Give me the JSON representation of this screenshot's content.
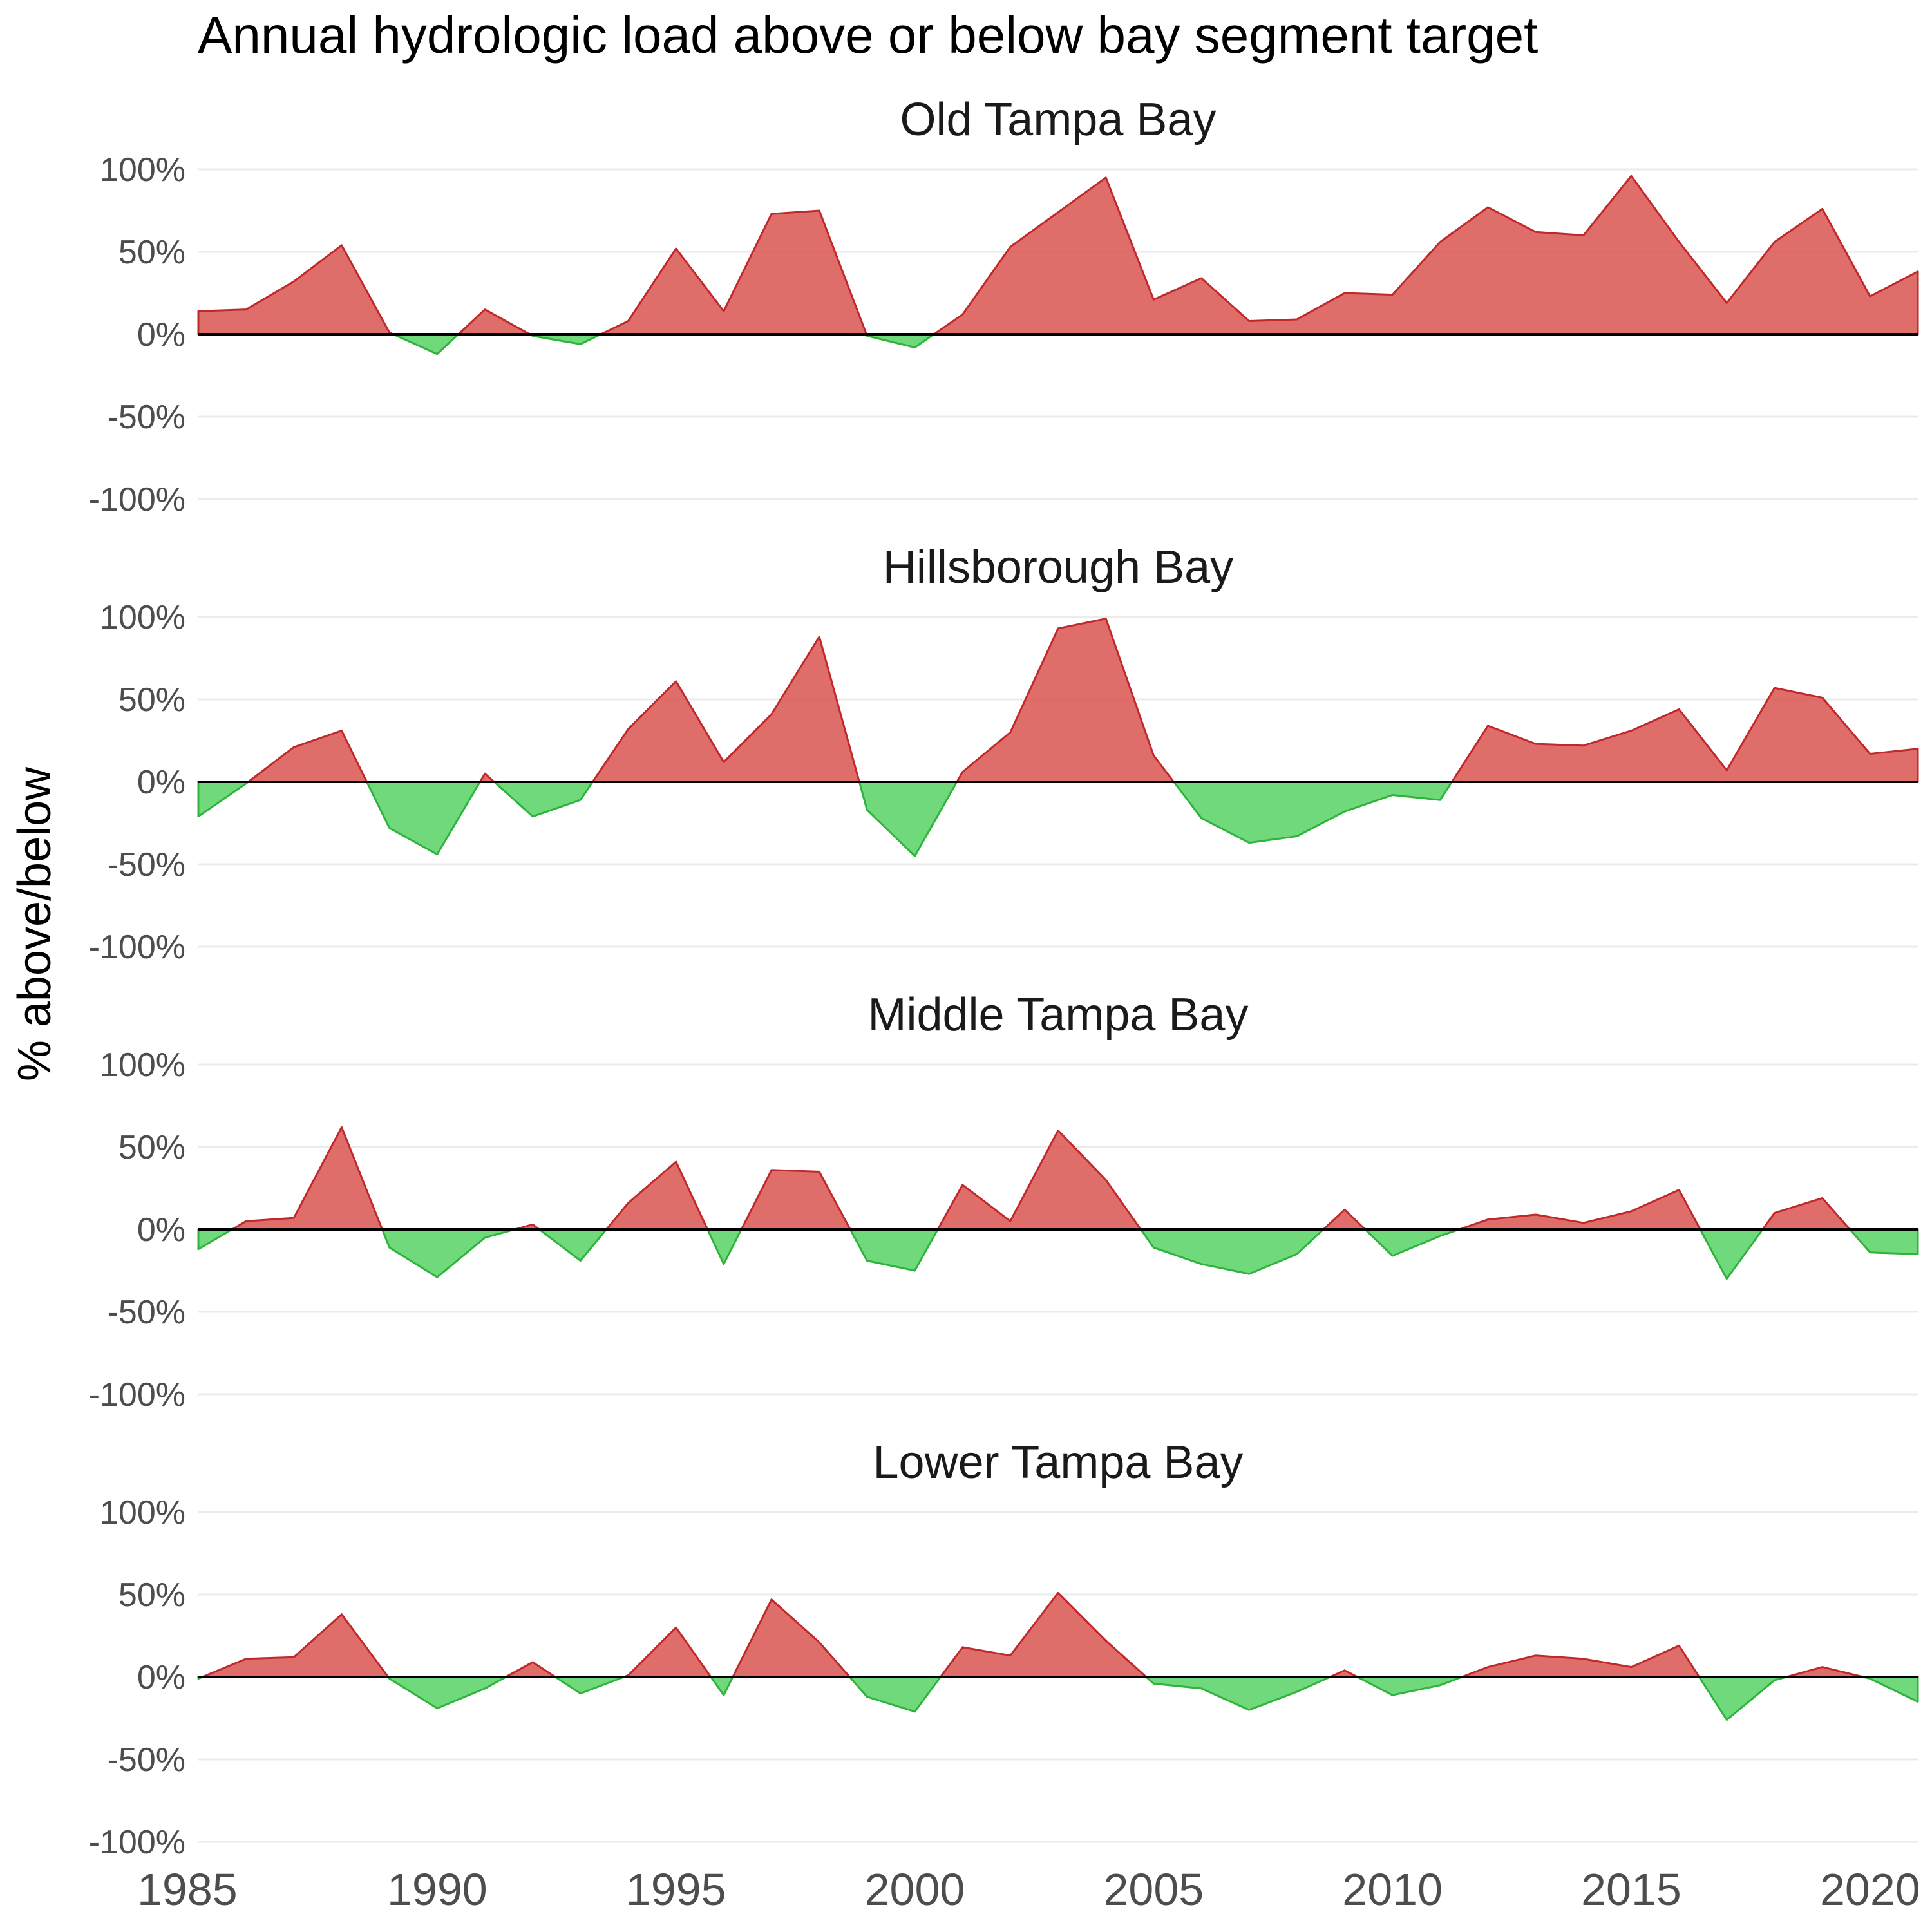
{
  "title": "Annual hydrologic load above or below bay segment target",
  "ylabel": "% above/below",
  "colors": {
    "above": "#d9534f",
    "below": "#4cd05a",
    "zero_line": "#000000",
    "grid": "#ebebeb"
  },
  "chart_data": [
    {
      "type": "area",
      "title": "Old Tampa Bay",
      "xlim": [
        1985,
        2021
      ],
      "ylim": [
        -100,
        100
      ],
      "y_ticks": [
        "100%",
        "50%",
        "0%",
        "-50%",
        "-100%"
      ],
      "y_tick_values": [
        100,
        50,
        0,
        -50,
        -100
      ],
      "x": [
        1985,
        1986,
        1987,
        1988,
        1989,
        1990,
        1991,
        1992,
        1993,
        1994,
        1995,
        1996,
        1997,
        1998,
        1999,
        2000,
        2001,
        2002,
        2003,
        2004,
        2005,
        2006,
        2007,
        2008,
        2009,
        2010,
        2011,
        2012,
        2013,
        2014,
        2015,
        2016,
        2017,
        2018,
        2019,
        2020,
        2021
      ],
      "values": [
        14,
        15,
        32,
        54,
        1,
        -12,
        15,
        -1,
        -6,
        8,
        52,
        14,
        73,
        75,
        -1,
        -8,
        12,
        53,
        74,
        95,
        21,
        34,
        8,
        9,
        25,
        24,
        56,
        77,
        62,
        60,
        96,
        56,
        19,
        56,
        76,
        23,
        38
      ]
    },
    {
      "type": "area",
      "title": "Hillsborough Bay",
      "xlim": [
        1985,
        2021
      ],
      "ylim": [
        -100,
        100
      ],
      "y_ticks": [
        "100%",
        "50%",
        "0%",
        "-50%",
        "-100%"
      ],
      "y_tick_values": [
        100,
        50,
        0,
        -50,
        -100
      ],
      "x": [
        1985,
        1986,
        1987,
        1988,
        1989,
        1990,
        1991,
        1992,
        1993,
        1994,
        1995,
        1996,
        1997,
        1998,
        1999,
        2000,
        2001,
        2002,
        2003,
        2004,
        2005,
        2006,
        2007,
        2008,
        2009,
        2010,
        2011,
        2012,
        2013,
        2014,
        2015,
        2016,
        2017,
        2018,
        2019,
        2020,
        2021
      ],
      "values": [
        -21,
        -1,
        21,
        31,
        -28,
        -44,
        5,
        -21,
        -11,
        32,
        61,
        12,
        41,
        88,
        -17,
        -45,
        6,
        30,
        93,
        99,
        16,
        -22,
        -37,
        -33,
        -18,
        -8,
        -11,
        34,
        23,
        22,
        31,
        44,
        7,
        57,
        51,
        17,
        20
      ]
    },
    {
      "type": "area",
      "title": "Middle Tampa Bay",
      "xlim": [
        1985,
        2021
      ],
      "ylim": [
        -100,
        100
      ],
      "y_ticks": [
        "100%",
        "50%",
        "0%",
        "-50%",
        "-100%"
      ],
      "y_tick_values": [
        100,
        50,
        0,
        -50,
        -100
      ],
      "x": [
        1985,
        1986,
        1987,
        1988,
        1989,
        1990,
        1991,
        1992,
        1993,
        1994,
        1995,
        1996,
        1997,
        1998,
        1999,
        2000,
        2001,
        2002,
        2003,
        2004,
        2005,
        2006,
        2007,
        2008,
        2009,
        2010,
        2011,
        2012,
        2013,
        2014,
        2015,
        2016,
        2017,
        2018,
        2019,
        2020,
        2021
      ],
      "values": [
        -12,
        5,
        7,
        62,
        -11,
        -29,
        -5,
        3,
        -19,
        16,
        41,
        -21,
        36,
        35,
        -19,
        -25,
        27,
        5,
        60,
        30,
        -11,
        -21,
        -27,
        -15,
        12,
        -16,
        -4,
        6,
        9,
        4,
        11,
        24,
        -30,
        10,
        19,
        -14,
        -15
      ]
    },
    {
      "type": "area",
      "title": "Lower Tampa Bay",
      "xlim": [
        1985,
        2021
      ],
      "ylim": [
        -100,
        100
      ],
      "y_ticks": [
        "100%",
        "50%",
        "0%",
        "-50%",
        "-100%"
      ],
      "y_tick_values": [
        100,
        50,
        0,
        -50,
        -100
      ],
      "x": [
        1985,
        1986,
        1987,
        1988,
        1989,
        1990,
        1991,
        1992,
        1993,
        1994,
        1995,
        1996,
        1997,
        1998,
        1999,
        2000,
        2001,
        2002,
        2003,
        2004,
        2005,
        2006,
        2007,
        2008,
        2009,
        2010,
        2011,
        2012,
        2013,
        2014,
        2015,
        2016,
        2017,
        2018,
        2019,
        2020,
        2021
      ],
      "values": [
        -1,
        11,
        12,
        38,
        -1,
        -19,
        -7,
        9,
        -10,
        1,
        30,
        -11,
        47,
        21,
        -12,
        -21,
        18,
        13,
        51,
        22,
        -4,
        -7,
        -20,
        -9,
        4,
        -11,
        -5,
        6,
        13,
        11,
        6,
        19,
        -26,
        -2,
        6,
        -1,
        -15
      ]
    }
  ],
  "x_axis": {
    "ticks": [
      "1985",
      "1990",
      "1995",
      "2000",
      "2005",
      "2010",
      "2015",
      "2020"
    ],
    "tick_values": [
      1985,
      1990,
      1995,
      2000,
      2005,
      2010,
      2015,
      2020
    ]
  }
}
